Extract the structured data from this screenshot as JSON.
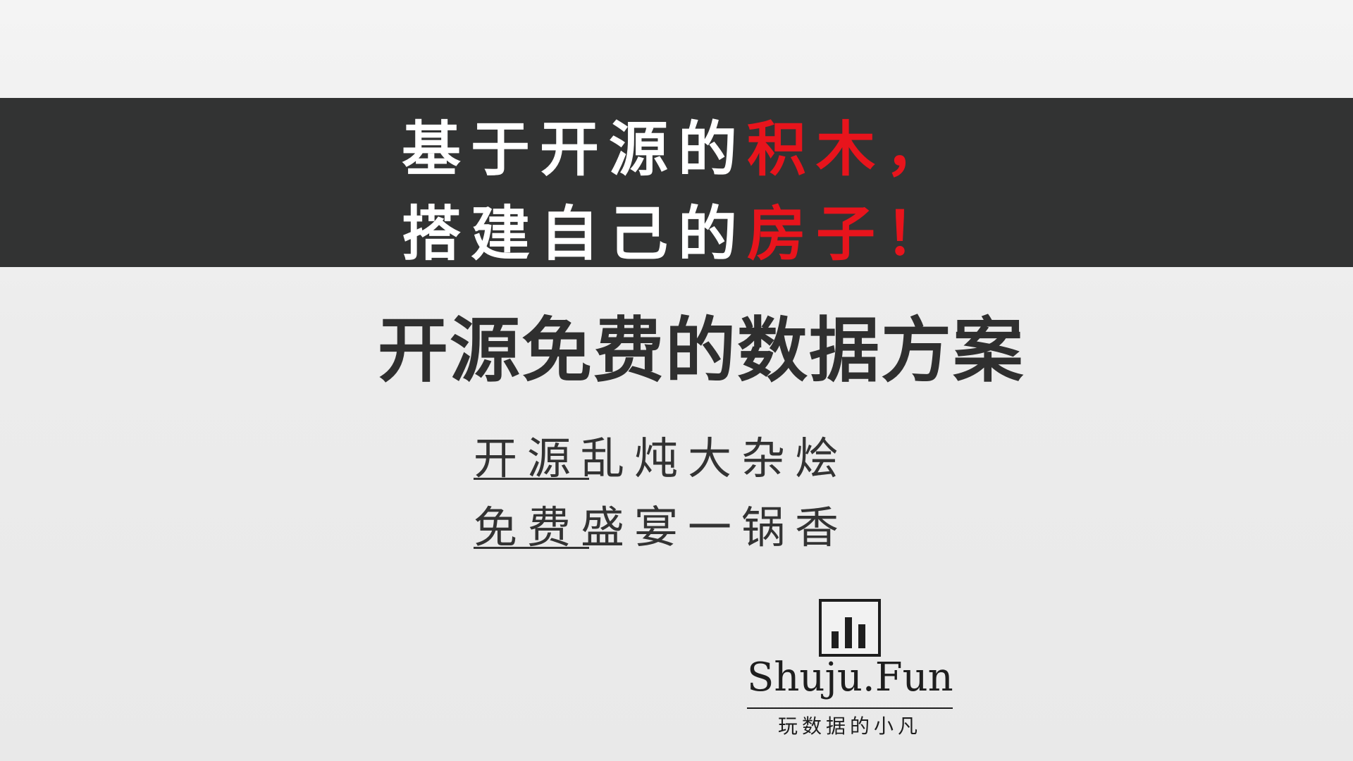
{
  "slogan": {
    "line1_white": "基于开源的",
    "line1_red": "积木",
    "line1_end": "，",
    "line2_white": "搭建自己的",
    "line2_red": "房子",
    "line2_end": "！"
  },
  "title": "开源免费的数据方案",
  "subtitle": {
    "line1_underlined": "开源",
    "line1_rest": "乱炖大杂烩",
    "line2_underlined": "免费",
    "line2_rest": "盛宴一锅香"
  },
  "brand": {
    "icon": "bar-chart-icon",
    "name": "Shuju.Fun",
    "tagline": "玩数据的小凡"
  },
  "colors": {
    "band": "#323333",
    "accent_red": "#e8141c",
    "text_dark": "#2f2f2f",
    "background": "#ececec"
  }
}
